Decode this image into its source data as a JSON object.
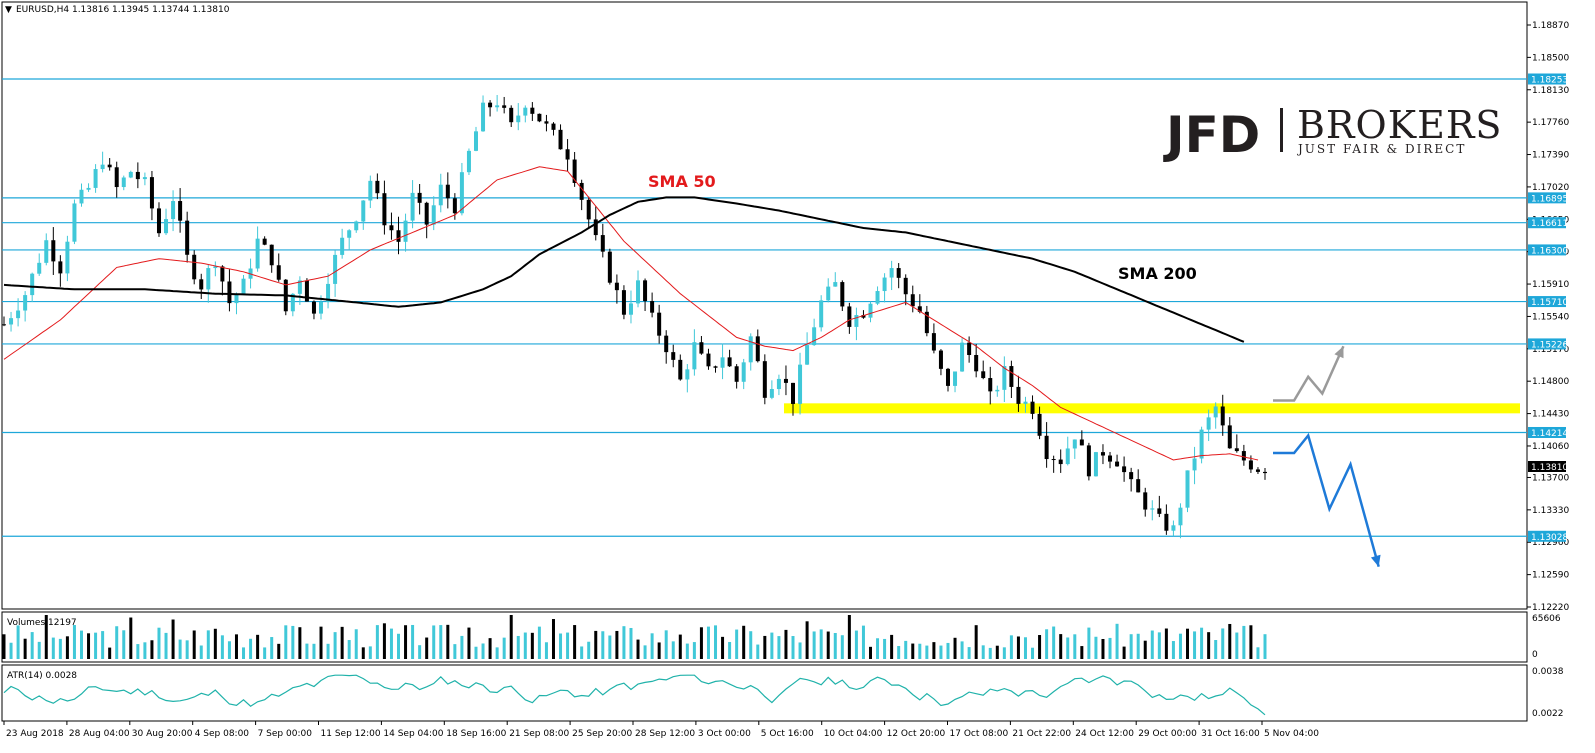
{
  "chart_data": {
    "type": "candlestick",
    "symbol_header": "EURUSD,H4  1.13816 1.13945 1.13744 1.13810",
    "current_price": "1.13810",
    "x_ticks": [
      "23 Aug 2018",
      "28 Aug 04:00",
      "30 Aug 20:00",
      "4 Sep 08:00",
      "7 Sep 00:00",
      "11 Sep 12:00",
      "14 Sep 04:00",
      "18 Sep 16:00",
      "21 Sep 08:00",
      "25 Sep 20:00",
      "28 Sep 12:00",
      "3 Oct 00:00",
      "5 Oct 16:00",
      "10 Oct 04:00",
      "12 Oct 20:00",
      "17 Oct 08:00",
      "21 Oct 22:00",
      "24 Oct 12:00",
      "29 Oct 00:00",
      "31 Oct 16:00",
      "5 Nov 04:00"
    ],
    "y_ticks": [
      "1.18870",
      "1.18500",
      "1.18130",
      "1.17760",
      "1.17390",
      "1.17020",
      "1.16650",
      "1.16280",
      "1.15910",
      "1.15540",
      "1.15170",
      "1.14800",
      "1.14430",
      "1.14060",
      "1.13700",
      "1.13330",
      "1.12960",
      "1.12590",
      "1.12220"
    ],
    "ylim": [
      1.1222,
      1.1887
    ],
    "levels": [
      "1.18253",
      "1.16895",
      "1.16611",
      "1.16300",
      "1.15710",
      "1.15226",
      "1.14214",
      "1.13028"
    ],
    "zone_price": 1.1449,
    "annotations": {
      "sma50": "SMA 50",
      "sma200": "SMA 200"
    },
    "price_path": [
      [
        0,
        1.1545
      ],
      [
        3,
        1.158
      ],
      [
        6,
        1.164
      ],
      [
        8,
        1.161
      ],
      [
        10,
        1.168
      ],
      [
        12,
        1.17
      ],
      [
        14,
        1.1735
      ],
      [
        16,
        1.17
      ],
      [
        18,
        1.172
      ],
      [
        20,
        1.1705
      ],
      [
        22,
        1.165
      ],
      [
        24,
        1.169
      ],
      [
        26,
        1.162
      ],
      [
        28,
        1.159
      ],
      [
        30,
        1.162
      ],
      [
        32,
        1.157
      ],
      [
        34,
        1.159
      ],
      [
        36,
        1.164
      ],
      [
        38,
        1.162
      ],
      [
        40,
        1.156
      ],
      [
        42,
        1.16
      ],
      [
        44,
        1.1555
      ],
      [
        46,
        1.16
      ],
      [
        48,
        1.164
      ],
      [
        50,
        1.167
      ],
      [
        52,
        1.171
      ],
      [
        54,
        1.1665
      ],
      [
        56,
        1.164
      ],
      [
        58,
        1.169
      ],
      [
        60,
        1.166
      ],
      [
        62,
        1.17
      ],
      [
        64,
        1.168
      ],
      [
        66,
        1.174
      ],
      [
        68,
        1.179
      ],
      [
        70,
        1.18
      ],
      [
        72,
        1.177
      ],
      [
        74,
        1.18
      ],
      [
        76,
        1.178
      ],
      [
        78,
        1.176
      ],
      [
        80,
        1.174
      ],
      [
        82,
        1.169
      ],
      [
        84,
        1.164
      ],
      [
        86,
        1.16
      ],
      [
        88,
        1.156
      ],
      [
        90,
        1.159
      ],
      [
        92,
        1.155
      ],
      [
        94,
        1.152
      ],
      [
        96,
        1.148
      ],
      [
        98,
        1.152
      ],
      [
        100,
        1.149
      ],
      [
        102,
        1.151
      ],
      [
        104,
        1.148
      ],
      [
        106,
        1.153
      ],
      [
        108,
        1.147
      ],
      [
        110,
        1.149
      ],
      [
        112,
        1.146
      ],
      [
        114,
        1.152
      ],
      [
        116,
        1.157
      ],
      [
        118,
        1.159
      ],
      [
        120,
        1.155
      ],
      [
        122,
        1.156
      ],
      [
        124,
        1.159
      ],
      [
        126,
        1.161
      ],
      [
        128,
        1.158
      ],
      [
        130,
        1.156
      ],
      [
        132,
        1.151
      ],
      [
        134,
        1.147
      ],
      [
        136,
        1.152
      ],
      [
        138,
        1.15
      ],
      [
        140,
        1.146
      ],
      [
        142,
        1.149
      ],
      [
        144,
        1.146
      ],
      [
        146,
        1.145
      ],
      [
        148,
        1.14
      ],
      [
        150,
        1.139
      ],
      [
        152,
        1.142
      ],
      [
        154,
        1.138
      ],
      [
        156,
        1.14
      ],
      [
        158,
        1.139
      ],
      [
        160,
        1.136
      ],
      [
        162,
        1.134
      ],
      [
        164,
        1.132
      ],
      [
        166,
        1.131
      ],
      [
        168,
        1.137
      ],
      [
        170,
        1.142
      ],
      [
        172,
        1.145
      ],
      [
        174,
        1.14
      ],
      [
        176,
        1.139
      ],
      [
        178,
        1.1381
      ]
    ],
    "sma50_path": [
      [
        0,
        1.1505
      ],
      [
        8,
        1.155
      ],
      [
        16,
        1.161
      ],
      [
        22,
        1.162
      ],
      [
        28,
        1.1615
      ],
      [
        34,
        1.1605
      ],
      [
        40,
        1.159
      ],
      [
        46,
        1.16
      ],
      [
        52,
        1.163
      ],
      [
        58,
        1.165
      ],
      [
        64,
        1.167
      ],
      [
        70,
        1.171
      ],
      [
        76,
        1.1725
      ],
      [
        80,
        1.172
      ],
      [
        84,
        1.168
      ],
      [
        88,
        1.164
      ],
      [
        92,
        1.161
      ],
      [
        96,
        1.158
      ],
      [
        100,
        1.1555
      ],
      [
        104,
        1.153
      ],
      [
        108,
        1.152
      ],
      [
        112,
        1.1515
      ],
      [
        116,
        1.153
      ],
      [
        120,
        1.155
      ],
      [
        124,
        1.156
      ],
      [
        128,
        1.157
      ],
      [
        130,
        1.156
      ],
      [
        134,
        1.154
      ],
      [
        138,
        1.152
      ],
      [
        142,
        1.1495
      ],
      [
        146,
        1.1475
      ],
      [
        150,
        1.145
      ],
      [
        154,
        1.1435
      ],
      [
        158,
        1.142
      ],
      [
        162,
        1.1405
      ],
      [
        166,
        1.139
      ],
      [
        170,
        1.1395
      ],
      [
        174,
        1.1397
      ],
      [
        178,
        1.139
      ]
    ],
    "sma200_path": [
      [
        0,
        1.159
      ],
      [
        10,
        1.1585
      ],
      [
        20,
        1.1585
      ],
      [
        30,
        1.158
      ],
      [
        40,
        1.1578
      ],
      [
        50,
        1.157
      ],
      [
        56,
        1.1565
      ],
      [
        62,
        1.157
      ],
      [
        68,
        1.1585
      ],
      [
        72,
        1.16
      ],
      [
        76,
        1.1625
      ],
      [
        82,
        1.165
      ],
      [
        86,
        1.167
      ],
      [
        90,
        1.1685
      ],
      [
        94,
        1.169
      ],
      [
        98,
        1.169
      ],
      [
        104,
        1.1683
      ],
      [
        110,
        1.1675
      ],
      [
        116,
        1.1665
      ],
      [
        122,
        1.1655
      ],
      [
        128,
        1.165
      ],
      [
        134,
        1.164
      ],
      [
        140,
        1.163
      ],
      [
        146,
        1.162
      ],
      [
        152,
        1.1605
      ],
      [
        158,
        1.1585
      ],
      [
        164,
        1.1565
      ],
      [
        170,
        1.1545
      ],
      [
        176,
        1.1525
      ]
    ],
    "volume_panel": {
      "label": "Volumes 12197",
      "ticks": [
        "65606",
        "0"
      ],
      "max": 65606
    },
    "atr_panel": {
      "label": "ATR(14) 0.0028",
      "ticks": [
        "0.0038",
        "0.0022"
      ],
      "range": [
        0.0019,
        0.0039
      ]
    },
    "forecast_up": [
      [
        1.1458,
        0
      ],
      [
        1.1458,
        3
      ],
      [
        1.1485,
        5
      ],
      [
        1.1466,
        7
      ],
      [
        1.152,
        10
      ]
    ],
    "forecast_down": [
      [
        1.1398,
        0
      ],
      [
        1.1398,
        3
      ],
      [
        1.1418,
        5
      ],
      [
        1.1334,
        8
      ],
      [
        1.1385,
        11
      ],
      [
        1.1268,
        15
      ]
    ]
  },
  "logo": {
    "brand": "JFD",
    "name": "BROKERS",
    "tagline": "JUST FAIR & DIRECT"
  }
}
